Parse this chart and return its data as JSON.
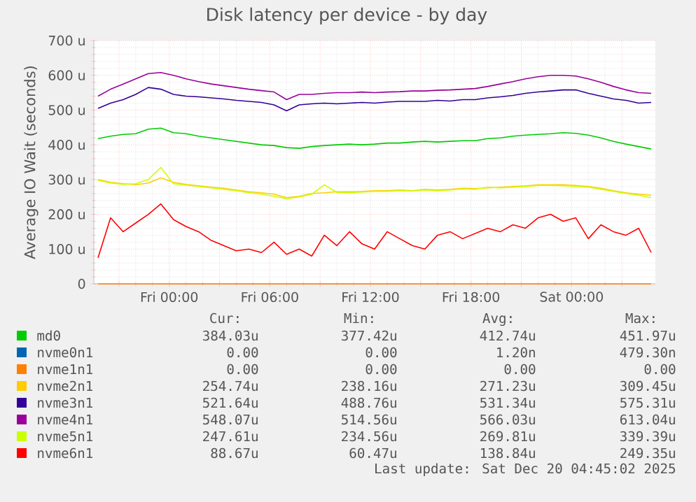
{
  "chart_data": {
    "type": "line",
    "title": "Disk latency per device - by day",
    "ylabel": "Average IO Wait (seconds)",
    "x": [
      "2025-12-18T19:45",
      "2025-12-18T20:30",
      "2025-12-18T21:15",
      "2025-12-18T22:00",
      "2025-12-18T22:45",
      "2025-12-18T23:30",
      "2025-12-19T00:15",
      "2025-12-19T01:00",
      "2025-12-19T01:45",
      "2025-12-19T02:30",
      "2025-12-19T03:15",
      "2025-12-19T04:00",
      "2025-12-19T04:45",
      "2025-12-19T05:30",
      "2025-12-19T06:15",
      "2025-12-19T07:00",
      "2025-12-19T07:45",
      "2025-12-19T08:30",
      "2025-12-19T09:15",
      "2025-12-19T10:00",
      "2025-12-19T10:45",
      "2025-12-19T11:30",
      "2025-12-19T12:15",
      "2025-12-19T13:00",
      "2025-12-19T13:45",
      "2025-12-19T14:30",
      "2025-12-19T15:15",
      "2025-12-19T16:00",
      "2025-12-19T16:45",
      "2025-12-19T17:30",
      "2025-12-19T18:15",
      "2025-12-19T19:00",
      "2025-12-19T19:45",
      "2025-12-19T20:30",
      "2025-12-19T21:15",
      "2025-12-19T22:00",
      "2025-12-19T22:45",
      "2025-12-19T23:30",
      "2025-12-20T00:15",
      "2025-12-20T01:00",
      "2025-12-20T01:45",
      "2025-12-20T02:30",
      "2025-12-20T03:15",
      "2025-12-20T04:00",
      "2025-12-20T04:45"
    ],
    "xlim": [
      "2025-12-18T19:30",
      "2025-12-20T05:00"
    ],
    "xticks": [
      {
        "value": "2025-12-18T21:00",
        "label": null
      },
      {
        "value": "2025-12-19T00:00",
        "label": "Fri 00:00"
      },
      {
        "value": "2025-12-19T03:00",
        "label": null
      },
      {
        "value": "2025-12-19T06:00",
        "label": "Fri 06:00"
      },
      {
        "value": "2025-12-19T09:00",
        "label": null
      },
      {
        "value": "2025-12-19T12:00",
        "label": "Fri 12:00"
      },
      {
        "value": "2025-12-19T15:00",
        "label": null
      },
      {
        "value": "2025-12-19T18:00",
        "label": "Fri 18:00"
      },
      {
        "value": "2025-12-19T21:00",
        "label": null
      },
      {
        "value": "2025-12-20T00:00",
        "label": "Sat 00:00"
      },
      {
        "value": "2025-12-20T03:00",
        "label": null
      }
    ],
    "ylim": [
      0,
      700
    ],
    "yticks": [
      0,
      {
        "value": 100,
        "label": "100 u"
      },
      {
        "value": 200,
        "label": "200 u"
      },
      {
        "value": 300,
        "label": "300 u"
      },
      {
        "value": 400,
        "label": "400 u"
      },
      {
        "value": 500,
        "label": "500 u"
      },
      {
        "value": 600,
        "label": "600 u"
      },
      {
        "value": 700,
        "label": "700 u"
      }
    ],
    "grid": true,
    "legend": "bottom",
    "marker": "none",
    "line_style": "solid",
    "series": [
      {
        "name": "md0",
        "color": "#00cc00",
        "values": [
          418,
          425,
          430,
          432,
          445,
          448,
          435,
          432,
          425,
          420,
          415,
          410,
          405,
          400,
          398,
          392,
          390,
          395,
          398,
          400,
          402,
          400,
          402,
          405,
          405,
          408,
          410,
          408,
          410,
          412,
          412,
          418,
          420,
          425,
          428,
          430,
          432,
          435,
          433,
          428,
          420,
          410,
          402,
          395,
          388
        ]
      },
      {
        "name": "nvme0n1",
        "color": "#0066b3",
        "values": [
          null,
          null,
          null,
          null,
          null,
          null,
          null,
          null,
          null,
          null,
          null,
          null,
          null,
          null,
          null,
          null,
          null,
          null,
          null,
          null,
          null,
          null,
          null,
          null,
          null,
          null,
          null,
          null,
          null,
          null,
          null,
          null,
          null,
          null,
          null,
          null,
          null,
          null,
          null,
          null,
          null,
          null,
          null,
          null,
          null
        ]
      },
      {
        "name": "nvme1n1",
        "color": "#ff8000",
        "values": [
          0,
          0,
          0,
          0,
          0,
          0,
          0,
          0,
          0,
          0,
          0,
          0,
          0,
          0,
          0,
          0,
          0,
          0,
          0,
          0,
          0,
          0,
          0,
          0,
          0,
          0,
          0,
          0,
          0,
          0,
          0,
          0,
          0,
          0,
          0,
          0,
          0,
          0,
          0,
          0,
          0,
          0,
          0,
          0,
          0
        ]
      },
      {
        "name": "nvme2n1",
        "color": "#ffcc00",
        "values": [
          300,
          292,
          288,
          285,
          290,
          305,
          292,
          286,
          282,
          278,
          275,
          270,
          265,
          262,
          258,
          248,
          252,
          260,
          262,
          265,
          265,
          266,
          268,
          268,
          270,
          268,
          272,
          270,
          272,
          275,
          274,
          276,
          278,
          280,
          282,
          285,
          285,
          285,
          283,
          280,
          275,
          268,
          262,
          258,
          255
        ]
      },
      {
        "name": "nvme3n1",
        "color": "#330099",
        "values": [
          505,
          520,
          530,
          545,
          565,
          560,
          545,
          540,
          538,
          535,
          532,
          528,
          525,
          522,
          515,
          498,
          515,
          518,
          520,
          518,
          520,
          522,
          520,
          523,
          525,
          525,
          525,
          528,
          526,
          530,
          530,
          535,
          538,
          542,
          548,
          552,
          555,
          558,
          558,
          548,
          540,
          532,
          528,
          520,
          522
        ]
      },
      {
        "name": "nvme4n1",
        "color": "#990099",
        "values": [
          540,
          560,
          575,
          590,
          605,
          608,
          600,
          590,
          582,
          575,
          570,
          565,
          560,
          556,
          552,
          530,
          545,
          545,
          548,
          550,
          550,
          552,
          550,
          552,
          553,
          555,
          555,
          557,
          558,
          560,
          562,
          568,
          575,
          582,
          590,
          596,
          600,
          600,
          598,
          590,
          580,
          568,
          558,
          550,
          548
        ]
      },
      {
        "name": "nvme5n1",
        "color": "#ccff00",
        "values": [
          298,
          290,
          286,
          288,
          300,
          335,
          288,
          284,
          280,
          276,
          272,
          268,
          262,
          258,
          252,
          245,
          250,
          258,
          285,
          263,
          262,
          264,
          266,
          266,
          268,
          267,
          270,
          268,
          270,
          273,
          272,
          278,
          276,
          278,
          280,
          283,
          283,
          282,
          280,
          278,
          272,
          266,
          260,
          255,
          248
        ]
      },
      {
        "name": "nvme6n1",
        "color": "#ff0000",
        "values": [
          75,
          190,
          150,
          175,
          200,
          230,
          185,
          165,
          150,
          125,
          110,
          95,
          100,
          90,
          120,
          85,
          100,
          80,
          140,
          110,
          150,
          115,
          100,
          150,
          130,
          110,
          100,
          140,
          150,
          130,
          145,
          160,
          150,
          170,
          160,
          190,
          200,
          180,
          190,
          130,
          170,
          150,
          140,
          160,
          90
        ]
      }
    ],
    "annotations": [
      "Cur:",
      "Min:",
      "Avg:",
      "Max:",
      "384.03u",
      "377.42u",
      "412.74u",
      "451.97u",
      "0.00",
      "0.00",
      "1.20n",
      "479.30n",
      "0.00",
      "0.00",
      "0.00",
      "0.00",
      "254.74u",
      "238.16u",
      "271.23u",
      "309.45u",
      "521.64u",
      "488.76u",
      "531.34u",
      "575.31u",
      "548.07u",
      "514.56u",
      "566.03u",
      "613.04u",
      "247.61u",
      "234.56u",
      "269.81u",
      "339.39u",
      "88.67u",
      "60.47u",
      "138.84u",
      "249.35u",
      "Last update: Sat Dec 20 04:45:02 2025"
    ]
  }
}
